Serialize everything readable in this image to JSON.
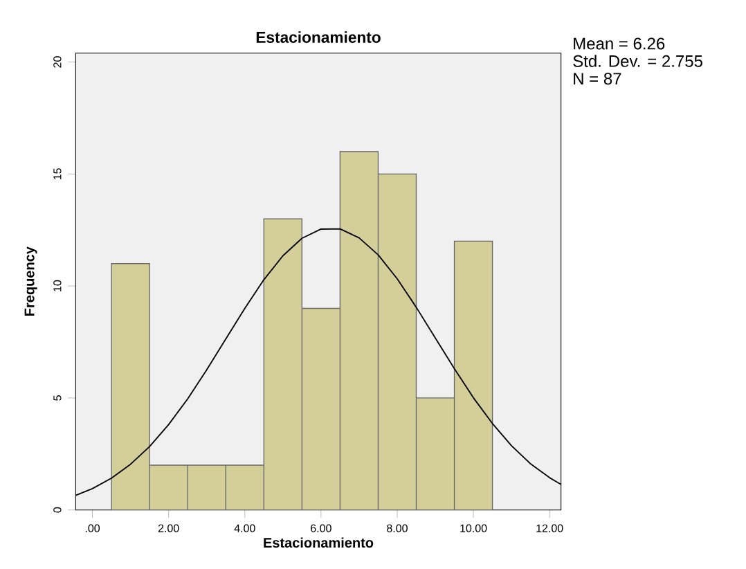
{
  "chart_data": {
    "type": "histogram",
    "title": "Estacionamiento",
    "xlabel": "Estacionamiento",
    "ylabel": "Frequency",
    "bins": [
      0.5,
      1.5,
      2.5,
      3.5,
      4.5,
      5.5,
      6.5,
      7.5,
      8.5,
      9.5,
      10.5
    ],
    "values": [
      11,
      2,
      2,
      2,
      13,
      9,
      16,
      15,
      5,
      12
    ],
    "color": "#d4cf98",
    "series": [
      {
        "type": "line",
        "color": "#000000",
        "x": [
          -0.44,
          0,
          0.5,
          1,
          1.5,
          2,
          2.5,
          3,
          3.5,
          4,
          4.5,
          5,
          5.5,
          6,
          6.5,
          7,
          7.5,
          8,
          8.5,
          9,
          9.5,
          10,
          10.5,
          11,
          11.5,
          12,
          12.3
        ],
        "values": [
          0.65,
          0.95,
          1.42,
          2.04,
          2.83,
          3.81,
          4.96,
          6.26,
          7.63,
          9.0,
          10.28,
          11.35,
          12.13,
          12.54,
          12.55,
          12.15,
          11.39,
          10.32,
          9.05,
          7.68,
          6.31,
          5.01,
          3.86,
          2.87,
          2.06,
          1.44,
          1.14
        ]
      }
    ],
    "xlim": [
      -0.44,
      12.3
    ],
    "ylim": [
      0,
      20.4
    ],
    "xticks": [
      {
        "value": 0,
        "label": ".00"
      },
      {
        "value": 2,
        "label": "2.00"
      },
      {
        "value": 4,
        "label": "4.00"
      },
      {
        "value": 6,
        "label": "6.00"
      },
      {
        "value": 8,
        "label": "8.00"
      },
      {
        "value": 10,
        "label": "10.00"
      },
      {
        "value": 12,
        "label": "12.00"
      }
    ],
    "yticks": [
      0,
      5,
      10,
      15,
      20
    ],
    "annotations": [
      "Mean = 6.26",
      "Std. Dev. = 2.755",
      "N = 87"
    ]
  }
}
